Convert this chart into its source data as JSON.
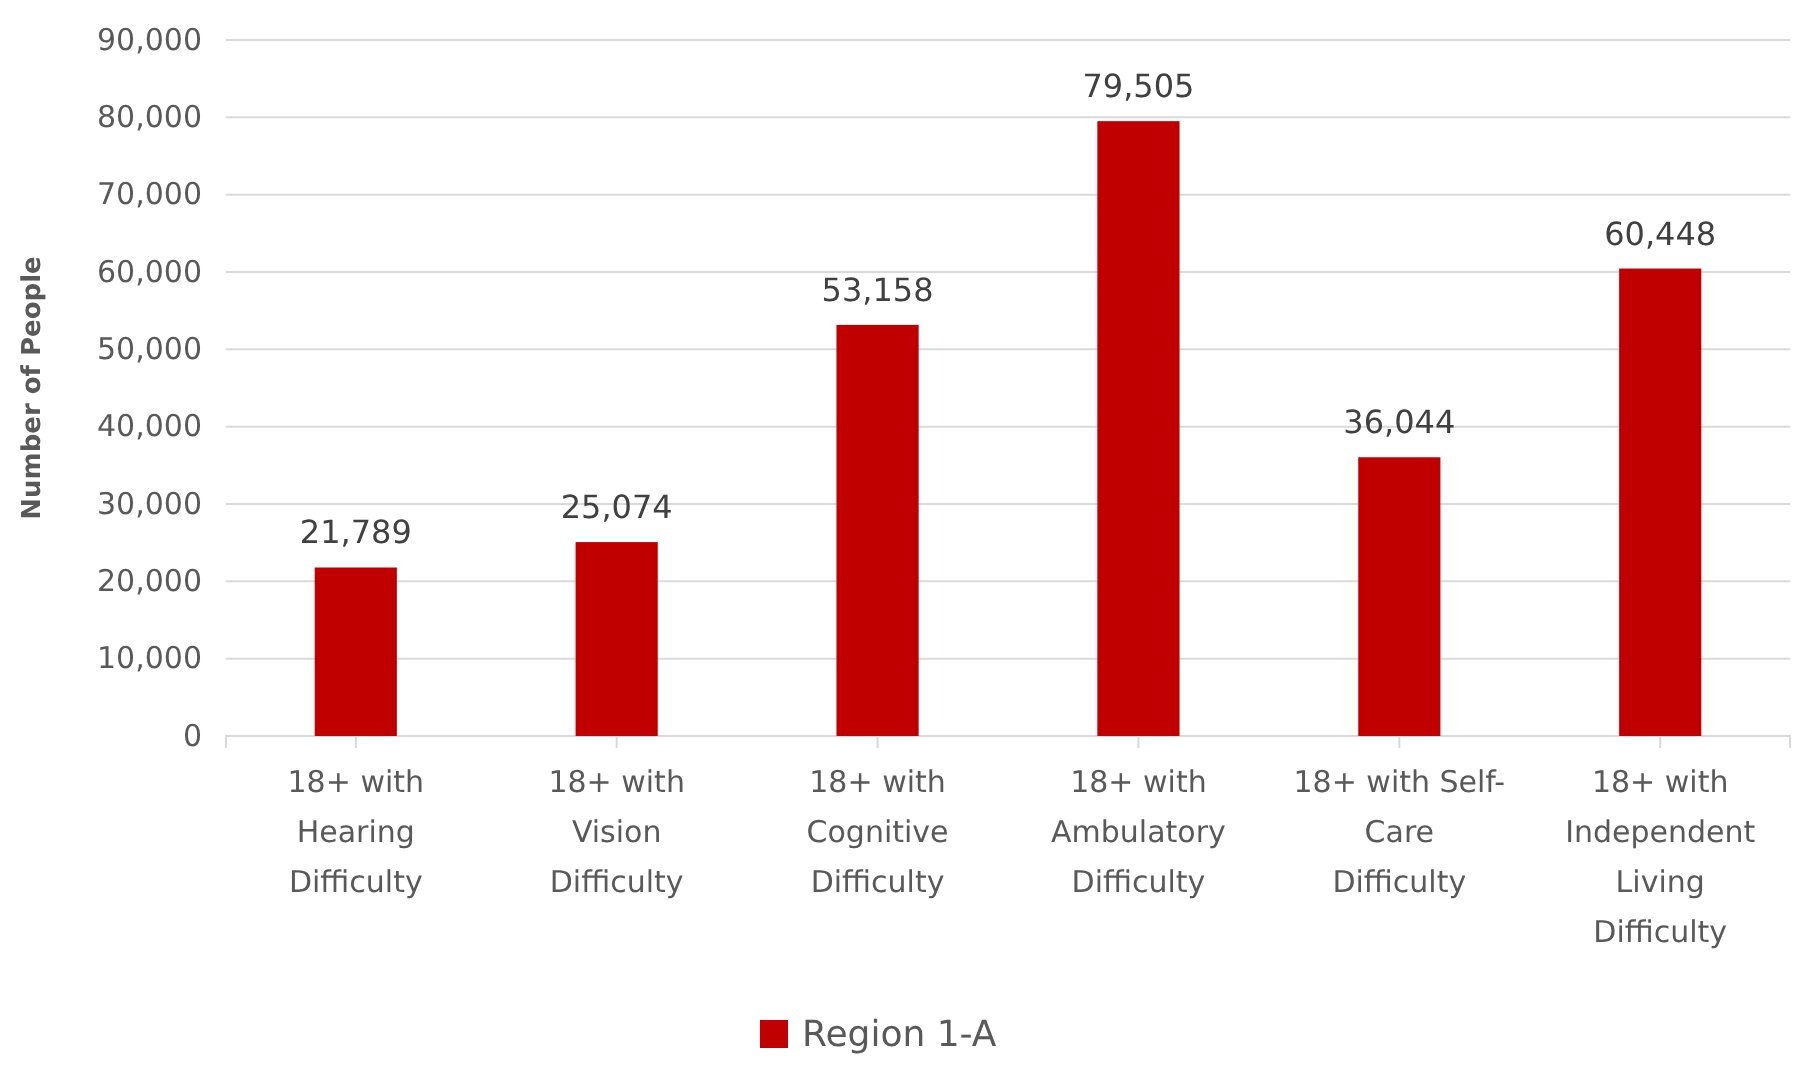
{
  "chart_data": {
    "type": "bar",
    "ylabel": "Number of People",
    "categories": [
      "18+ with Hearing Difficulty",
      "18+ with Vision Difficulty",
      "18+ with Cognitive Difficulty",
      "18+ with Ambulatory Difficulty",
      "18+ with Self-Care Difficulty",
      "18+ with Independent Living Difficulty"
    ],
    "series": [
      {
        "name": "Region 1-A",
        "color": "#c00000",
        "values": [
          21789,
          25074,
          53158,
          79505,
          36044,
          60448
        ],
        "value_labels": [
          "21,789",
          "25,074",
          "53,158",
          "79,505",
          "36,044",
          "60,448"
        ]
      }
    ],
    "ylim": [
      0,
      90000
    ],
    "yticks": [
      {
        "value": 0,
        "label": "0"
      },
      {
        "value": 10000,
        "label": "10,000"
      },
      {
        "value": 20000,
        "label": "20,000"
      },
      {
        "value": 30000,
        "label": "30,000"
      },
      {
        "value": 40000,
        "label": "40,000"
      },
      {
        "value": 50000,
        "label": "50,000"
      },
      {
        "value": 60000,
        "label": "60,000"
      },
      {
        "value": 70000,
        "label": "70,000"
      },
      {
        "value": 80000,
        "label": "80,000"
      },
      {
        "value": 90000,
        "label": "90,000"
      }
    ],
    "grid": "y",
    "legend": "bottom"
  }
}
